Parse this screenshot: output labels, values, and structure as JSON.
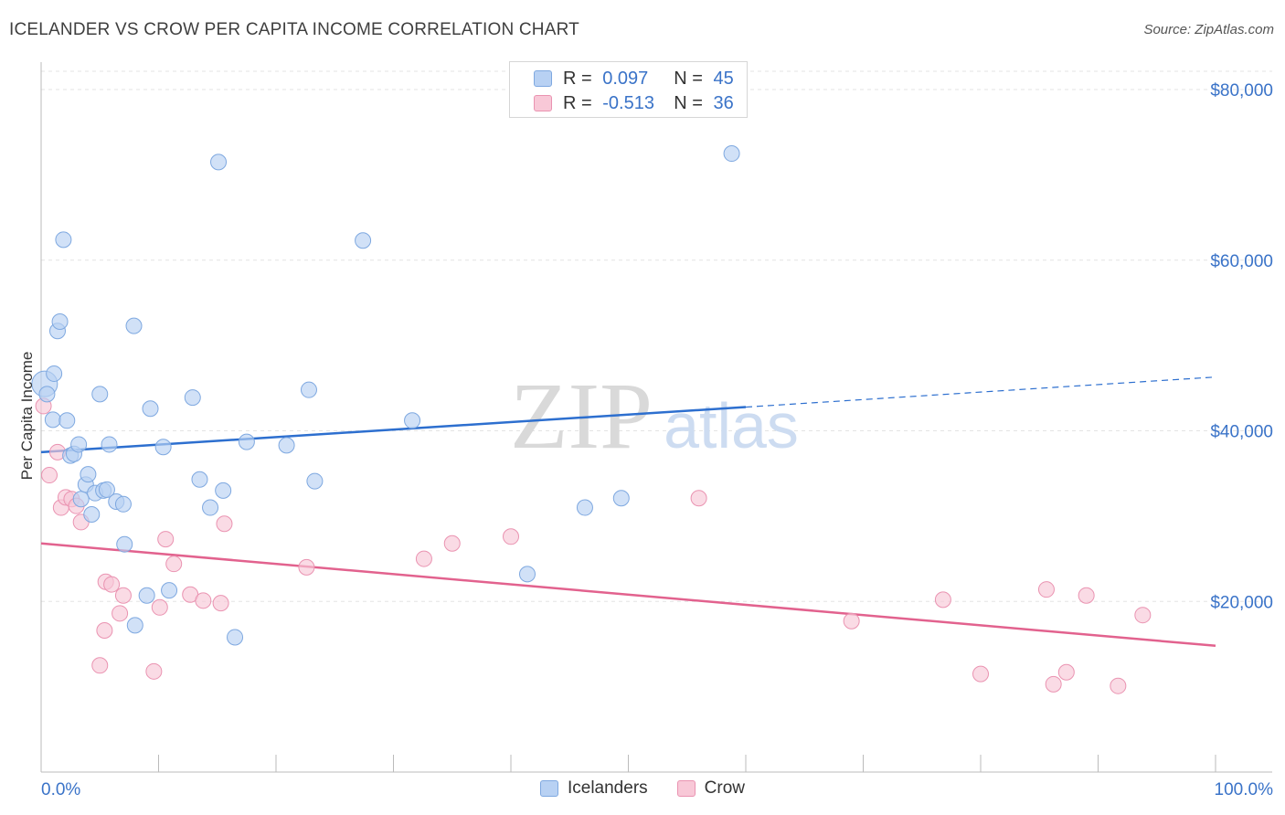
{
  "title": "ICELANDER VS CROW PER CAPITA INCOME CORRELATION CHART",
  "source": "Source: ZipAtlas.com",
  "watermark": {
    "zip": "ZIP",
    "atlas": "atlas"
  },
  "legend": {
    "rows": [
      {
        "r_label": "R =",
        "r_value": "0.097",
        "n_label": "N =",
        "n_value": "45"
      },
      {
        "r_label": "R =",
        "r_value": "-0.513",
        "n_label": "N =",
        "n_value": "36"
      }
    ]
  },
  "bottom_legend": {
    "series1": "Icelanders",
    "series2": "Crow"
  },
  "colors": {
    "blue_fill": "#b8d1f3",
    "blue_stroke": "#7ea8e0",
    "blue_line": "#2d6fcf",
    "pink_fill": "#f8c8d7",
    "pink_stroke": "#ea93b1",
    "pink_line": "#e2628e",
    "axis_text": "#3a73c8"
  },
  "chart_data": {
    "type": "scatter",
    "title": "ICELANDER VS CROW PER CAPITA INCOME CORRELATION CHART",
    "xlabel": "",
    "ylabel": "Per Capita Income",
    "xlim": [
      0,
      100
    ],
    "ylim": [
      0,
      80000
    ],
    "x_tick_labels": [
      "0.0%",
      "100.0%"
    ],
    "y_ticks": [
      20000,
      40000,
      60000,
      80000
    ],
    "y_tick_labels": [
      "$20,000",
      "$40,000",
      "$60,000",
      "$80,000"
    ],
    "grid": true,
    "legend_position": "top-center",
    "series": [
      {
        "name": "Icelanders",
        "r": 0.097,
        "n": 45,
        "trend": {
          "x0": 0,
          "y0": 37500,
          "x_solid_end": 60,
          "x1": 100,
          "y1": 46300
        },
        "points": [
          [
            0.3,
            45500
          ],
          [
            0.5,
            44300
          ],
          [
            1.0,
            41300
          ],
          [
            1.1,
            46700
          ],
          [
            1.4,
            51700
          ],
          [
            1.6,
            52800
          ],
          [
            1.9,
            62400
          ],
          [
            2.2,
            41200
          ],
          [
            2.5,
            37100
          ],
          [
            2.8,
            37300
          ],
          [
            3.2,
            38400
          ],
          [
            3.4,
            32000
          ],
          [
            3.8,
            33700
          ],
          [
            4.0,
            34900
          ],
          [
            4.3,
            30200
          ],
          [
            4.6,
            32700
          ],
          [
            5.0,
            44300
          ],
          [
            5.3,
            33000
          ],
          [
            5.6,
            33100
          ],
          [
            5.8,
            38400
          ],
          [
            6.4,
            31700
          ],
          [
            7.0,
            31400
          ],
          [
            7.1,
            26700
          ],
          [
            7.9,
            52300
          ],
          [
            8.0,
            17200
          ],
          [
            9.0,
            20700
          ],
          [
            9.3,
            42600
          ],
          [
            10.4,
            38100
          ],
          [
            10.9,
            21300
          ],
          [
            12.9,
            43900
          ],
          [
            13.5,
            34300
          ],
          [
            14.4,
            31000
          ],
          [
            15.1,
            71500
          ],
          [
            15.5,
            33000
          ],
          [
            16.5,
            15800
          ],
          [
            17.5,
            38700
          ],
          [
            20.9,
            38300
          ],
          [
            22.8,
            44800
          ],
          [
            23.3,
            34100
          ],
          [
            27.4,
            62300
          ],
          [
            31.6,
            41200
          ],
          [
            41.4,
            23200
          ],
          [
            46.3,
            31000
          ],
          [
            49.4,
            32100
          ],
          [
            58.8,
            72500
          ]
        ]
      },
      {
        "name": "Crow",
        "r": -0.513,
        "n": 36,
        "trend": {
          "x0": 0,
          "y0": 26800,
          "x1": 100,
          "y1": 14800
        },
        "points": [
          [
            0.2,
            42900
          ],
          [
            0.7,
            34800
          ],
          [
            1.4,
            37500
          ],
          [
            1.7,
            31000
          ],
          [
            2.1,
            32200
          ],
          [
            2.6,
            32000
          ],
          [
            3.0,
            31200
          ],
          [
            3.4,
            29300
          ],
          [
            5.0,
            12500
          ],
          [
            5.4,
            16600
          ],
          [
            5.5,
            22300
          ],
          [
            6.0,
            22000
          ],
          [
            6.7,
            18600
          ],
          [
            7.0,
            20700
          ],
          [
            9.6,
            11800
          ],
          [
            10.1,
            19300
          ],
          [
            10.6,
            27300
          ],
          [
            11.3,
            24400
          ],
          [
            12.7,
            20800
          ],
          [
            13.8,
            20100
          ],
          [
            15.3,
            19800
          ],
          [
            15.6,
            29100
          ],
          [
            22.6,
            24000
          ],
          [
            32.6,
            25000
          ],
          [
            35.0,
            26800
          ],
          [
            40.0,
            27600
          ],
          [
            56.0,
            32100
          ],
          [
            69.0,
            17700
          ],
          [
            76.8,
            20200
          ],
          [
            80.0,
            11500
          ],
          [
            85.6,
            21400
          ],
          [
            86.2,
            10300
          ],
          [
            87.3,
            11700
          ],
          [
            89.0,
            20700
          ],
          [
            91.7,
            10100
          ],
          [
            93.8,
            18400
          ]
        ]
      }
    ]
  }
}
